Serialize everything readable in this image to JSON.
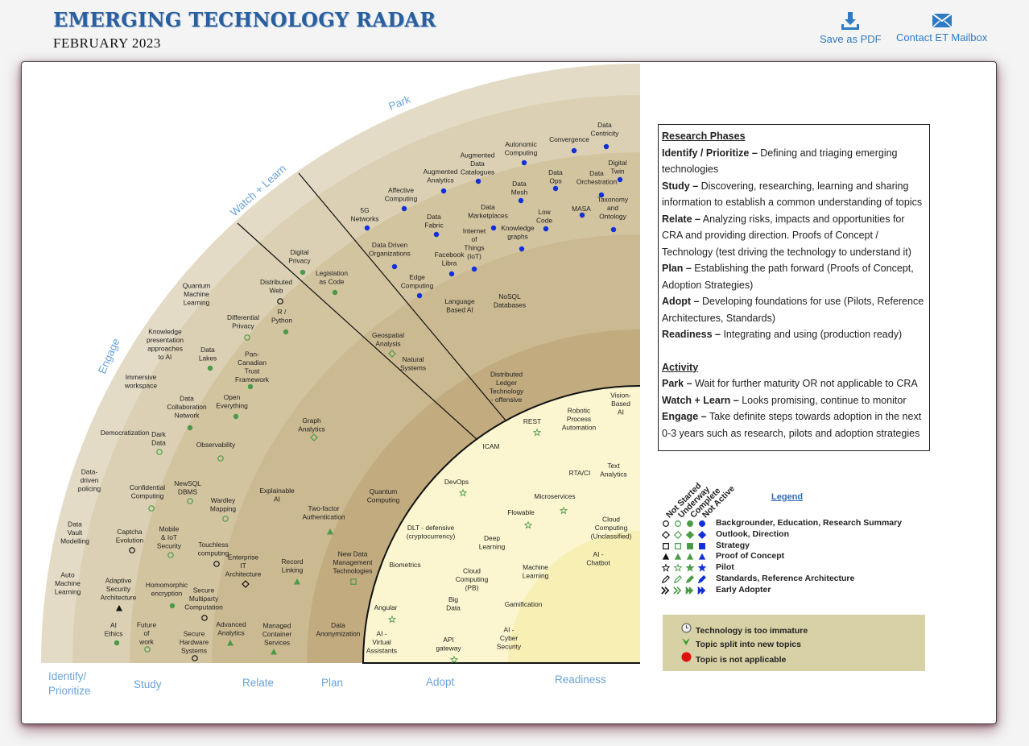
{
  "header": {
    "title": "EMERGING TECHNOLOGY RADAR",
    "subtitle": "FEBRUARY 2023",
    "save_pdf": "Save as PDF",
    "contact": "Contact ET Mailbox"
  },
  "radar": {
    "rings": [
      "Park",
      "Watch + Learn",
      "Engage"
    ],
    "phases": [
      "Identify/",
      "Prioritize",
      "Study",
      "Relate",
      "Plan",
      "Adopt",
      "Readiness"
    ],
    "labels": [
      {
        "text": "Data Centricity"
      },
      {
        "text": "Convergence"
      },
      {
        "text": "Autonomic Computing"
      },
      {
        "text": "Digital Twin"
      },
      {
        "text": "Augmented Data Catalogues"
      },
      {
        "text": "Data Ops"
      },
      {
        "text": "Data Orchestration"
      },
      {
        "text": "Augmented Analytics"
      },
      {
        "text": "Data Mesh"
      },
      {
        "text": "Taxonomy and Ontology"
      },
      {
        "text": "Affective Computing"
      },
      {
        "text": "MASA"
      },
      {
        "text": "5G Networks"
      },
      {
        "text": "Data Marketplaces"
      },
      {
        "text": "Low Code"
      },
      {
        "text": "Data Fabric"
      },
      {
        "text": "Knowledge graphs"
      },
      {
        "text": "Internet of Things (IoT)"
      },
      {
        "text": "Data Driven Organizations"
      },
      {
        "text": "Facebook Libra"
      },
      {
        "text": "Edge Computing"
      },
      {
        "text": "Language Based AI"
      },
      {
        "text": "NoSQL Databases"
      },
      {
        "text": "Digital Privacy"
      },
      {
        "text": "Legislation as Code"
      },
      {
        "text": "Distributed Web"
      },
      {
        "text": "R / Python"
      },
      {
        "text": "Differential Privacy"
      },
      {
        "text": "Quantum Machine Learning"
      },
      {
        "text": "Knowledge presentation approaches to AI"
      },
      {
        "text": "Data Lakes"
      },
      {
        "text": "Pan-Canadian Trust Framework"
      },
      {
        "text": "Geospatial Analysis"
      },
      {
        "text": "Natural Systems"
      },
      {
        "text": "Immersive workspace"
      },
      {
        "text": "Open Everything"
      },
      {
        "text": "Data Collaboration Network"
      },
      {
        "text": "Distributed Ledger Technology - offensive"
      },
      {
        "text": "Vision-Based AI"
      },
      {
        "text": "Robotic Process Automation"
      },
      {
        "text": "REST"
      },
      {
        "text": "Graph Analytics"
      },
      {
        "text": "Democratization"
      },
      {
        "text": "Dark Data"
      },
      {
        "text": "Observability"
      },
      {
        "text": "ICAM"
      },
      {
        "text": "Data-driven policing"
      },
      {
        "text": "RTA/CI"
      },
      {
        "text": "Text Analytics"
      },
      {
        "text": "NewSQL DBMS"
      },
      {
        "text": "Confidential Computing"
      },
      {
        "text": "DevOps"
      },
      {
        "text": "Explainable AI"
      },
      {
        "text": "Quantum Computing"
      },
      {
        "text": "Wardley Mapping"
      },
      {
        "text": "Microservices"
      },
      {
        "text": "Two-factor Authentication"
      },
      {
        "text": "Data Vault Modelling"
      },
      {
        "text": "Flowable"
      },
      {
        "text": "Cloud Computing (Unclassified)"
      },
      {
        "text": "Captcha Evolution"
      },
      {
        "text": "Mobile & IoT Security"
      },
      {
        "text": "DLT - defensive (cryptocurrency)"
      },
      {
        "text": "Deep Learning"
      },
      {
        "text": "Touchless computing"
      },
      {
        "text": "AI - Chatbot"
      },
      {
        "text": "Enterprise IT Architecture"
      },
      {
        "text": "New Data Management Technologies"
      },
      {
        "text": "Record Linking"
      },
      {
        "text": "Biometrics"
      },
      {
        "text": "Auto Machine Learning"
      },
      {
        "text": "Cloud Computing (PB)"
      },
      {
        "text": "Machine Learning"
      },
      {
        "text": "Adaptive Security Architecture"
      },
      {
        "text": "Homomorphic encryption"
      },
      {
        "text": "Secure Multiparty Computation"
      },
      {
        "text": "Big Data"
      },
      {
        "text": "Gamification"
      },
      {
        "text": "Angular"
      },
      {
        "text": "AI Ethics"
      },
      {
        "text": "Future of work"
      },
      {
        "text": "Advanced Analytics"
      },
      {
        "text": "Managed Container Services"
      },
      {
        "text": "Data Anonymization"
      },
      {
        "text": "AI - Virtual Assistants"
      },
      {
        "text": "AI - Cyber Security"
      },
      {
        "text": "API gateway"
      },
      {
        "text": "Secure Hardware Systems"
      }
    ]
  },
  "research": {
    "phases_title": "Research Phases",
    "phases": [
      {
        "term": "Identify / Prioritize –",
        "desc": " Defining and triaging emerging technologies"
      },
      {
        "term": "Study –",
        "desc": " Discovering, researching, learning and sharing information to establish a common understanding of topics"
      },
      {
        "term": "Relate –",
        "desc": " Analyzing risks, impacts and opportunities for CRA and providing direction. Proofs of Concept / Technology (test driving the technology to understand it)"
      },
      {
        "term": "Plan –",
        "desc": " Establishing the path forward (Proofs of Concept, Adoption Strategies)"
      },
      {
        "term": "Adopt –",
        "desc": " Developing foundations for use (Pilots, Reference Architectures, Standards)"
      },
      {
        "term": "Readiness –",
        "desc": " Integrating and using (production ready)"
      }
    ],
    "activity_title": "Activity",
    "activity": [
      {
        "term": "Park –",
        "desc": " Wait for further maturity OR not applicable to CRA"
      },
      {
        "term": "Watch + Learn –",
        "desc": " Looks promising, continue to monitor"
      },
      {
        "term": "Engage –",
        "desc": " Take definite steps towards adoption in the next 0-3 years such as research, pilots and adoption strategies"
      }
    ]
  },
  "legend": {
    "title": "Legend",
    "columns": [
      "Not Started",
      "Underway",
      "Complete",
      "Not Active"
    ],
    "rows": [
      {
        "label": "Backgrounder, Education, Research Summary",
        "shape": "circle"
      },
      {
        "label": "Outlook, Direction",
        "shape": "diamond"
      },
      {
        "label": "Strategy",
        "shape": "square"
      },
      {
        "label": "Proof of Concept",
        "shape": "triangle"
      },
      {
        "label": "Pilot",
        "shape": "star"
      },
      {
        "label": "Standards, Reference Architecture",
        "shape": "pen"
      },
      {
        "label": "Early Adopter",
        "shape": "chevron"
      }
    ],
    "notes": [
      {
        "icon": "clock-icon",
        "label": "Technology is too immature"
      },
      {
        "icon": "split-arrow-icon",
        "label": "Topic split into new topics"
      },
      {
        "icon": "red-dot-icon",
        "label": "Topic is not applicable"
      }
    ],
    "colors": {
      "green": "#4a9b48",
      "blue": "#1030d8",
      "red": "#e01010",
      "black": "#111111"
    }
  }
}
